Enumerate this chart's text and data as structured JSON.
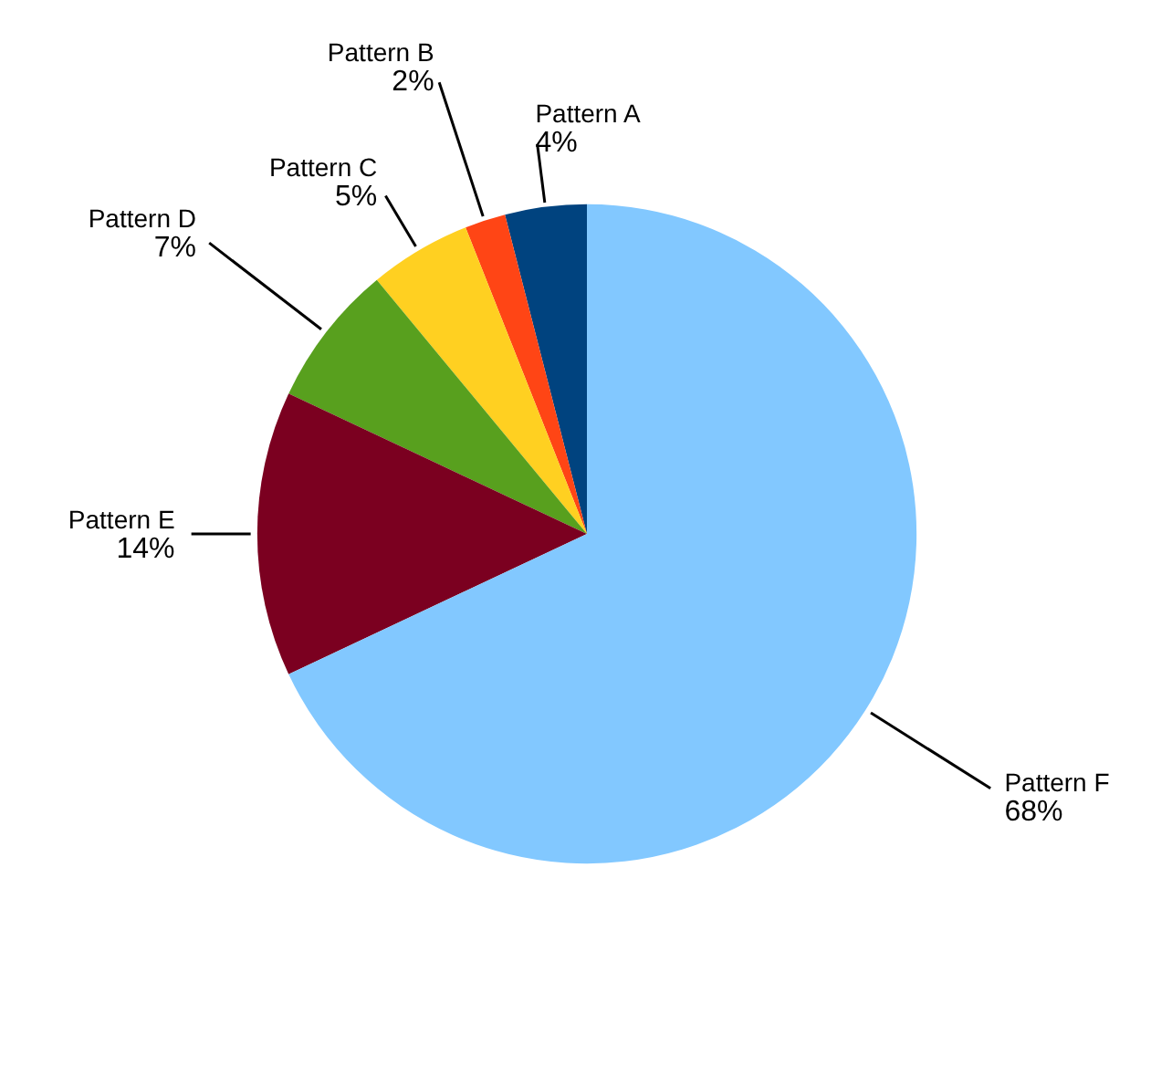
{
  "chart_data": {
    "type": "pie",
    "categories": [
      "Pattern A",
      "Pattern B",
      "Pattern C",
      "Pattern D",
      "Pattern E",
      "Pattern F"
    ],
    "values": [
      4,
      2,
      5,
      7,
      14,
      68
    ],
    "value_labels": [
      "4%",
      "2%",
      "5%",
      "7%",
      "14%",
      "68%"
    ],
    "colors": [
      "#00437f",
      "#ff4515",
      "#ffd021",
      "#58a01e",
      "#7b0020",
      "#82c8ff"
    ]
  }
}
